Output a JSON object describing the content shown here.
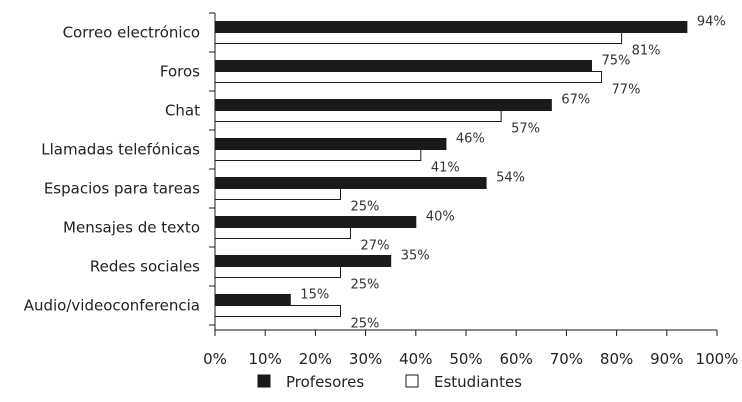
{
  "chart_data": {
    "type": "bar",
    "orientation": "horizontal",
    "categories": [
      "Correo electrónico",
      "Foros",
      "Chat",
      "Llamadas telefónicas",
      "Espacios para tareas",
      "Mensajes de texto",
      "Redes sociales",
      "Audio/videoconferencia"
    ],
    "series": [
      {
        "name": "Profesores",
        "values": [
          94,
          75,
          67,
          46,
          54,
          40,
          35,
          15
        ],
        "color": "#1a1a1a"
      },
      {
        "name": "Estudiantes",
        "values": [
          81,
          77,
          57,
          41,
          25,
          27,
          25,
          25
        ],
        "color": "#ffffff"
      }
    ],
    "value_labels": {
      "Profesores": [
        "94%",
        "75%",
        "67%",
        "46%",
        "54%",
        "40%",
        "35%",
        "15%"
      ],
      "Estudiantes": [
        "81%",
        "77%",
        "57%",
        "41%",
        "25%",
        "27%",
        "25%",
        "25%"
      ]
    },
    "xlim": [
      0,
      100
    ],
    "x_ticks": [
      "0%",
      "10%",
      "20%",
      "30%",
      "40%",
      "50%",
      "60%",
      "70%",
      "80%",
      "90%",
      "100%"
    ],
    "legend_position": "bottom",
    "grid": false
  }
}
